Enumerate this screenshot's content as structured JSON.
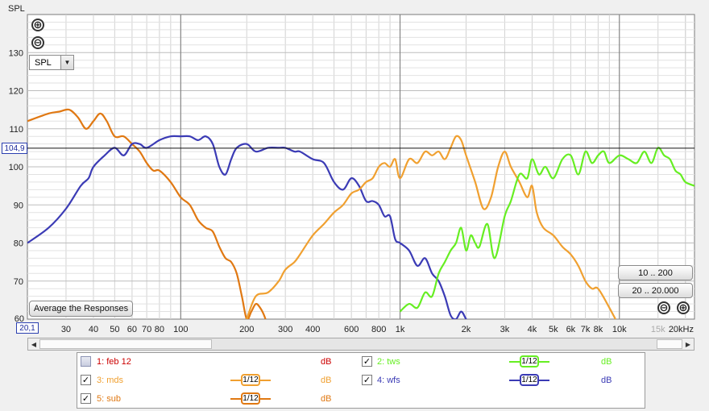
{
  "ylabel": "SPL",
  "cursor": {
    "y_value": "104,9",
    "x_value": "20,1"
  },
  "controls": {
    "zoom_in_v": "⊕",
    "zoom_out_v": "⊖",
    "select_value": "SPL",
    "select_arrow": "▼",
    "range_10_200": "10 .. 200",
    "range_20_20000": "20 .. 20.000",
    "avg_button": "Average the Responses",
    "zoom_out_h": "⊖",
    "zoom_in_h": "⊕",
    "scroll_left": "◀",
    "scroll_right": "▶"
  },
  "legend": {
    "items": [
      {
        "label": "1: feb 12",
        "checked": false,
        "color": "#cc0000",
        "smoothing": "",
        "unit": "dB"
      },
      {
        "label": "2: tws",
        "checked": true,
        "color": "#66ee22",
        "smoothing": "1/12",
        "unit": "dB"
      },
      {
        "label": "3: mds",
        "checked": true,
        "color": "#f0a030",
        "smoothing": "1/12",
        "unit": "dB"
      },
      {
        "label": "4: wfs",
        "checked": true,
        "color": "#3b3bb5",
        "smoothing": "1/12",
        "unit": "dB"
      },
      {
        "label": "5: sub",
        "checked": true,
        "color": "#e07812",
        "smoothing": "1/12",
        "unit": "dB"
      }
    ],
    "check_mark": "✓"
  },
  "chart_data": {
    "type": "line",
    "xscale": "log",
    "xlim": [
      20,
      22000
    ],
    "ylim": [
      60,
      140
    ],
    "ylabel": "SPL",
    "cursor_y": 104.9,
    "yticks": [
      60,
      70,
      80,
      90,
      100,
      110,
      120,
      130
    ],
    "ytick_labels": [
      "60",
      "70",
      "80",
      "90",
      "100",
      "110",
      "120",
      "130"
    ],
    "xticks": [
      30,
      40,
      50,
      60,
      70,
      80,
      100,
      200,
      300,
      400,
      600,
      800,
      1000,
      2000,
      3000,
      4000,
      5000,
      6000,
      7000,
      8000,
      10000,
      15000,
      20000
    ],
    "xtick_labels": [
      "30",
      "40",
      "50",
      "60",
      "70",
      "80",
      "100",
      "200",
      "300",
      "400",
      "600",
      "800",
      "1k",
      "2k",
      "3k",
      "4k",
      "5k",
      "6k",
      "7k",
      "8k",
      "10k",
      "15k",
      "20kHz"
    ],
    "grid": true,
    "series": [
      {
        "name": "5: sub",
        "color": "#e07812",
        "x": [
          20,
          25,
          28,
          31,
          34,
          37,
          40,
          43,
          46,
          50,
          55,
          60,
          65,
          70,
          75,
          80,
          90,
          100,
          110,
          120,
          130,
          140,
          150,
          160,
          170,
          180,
          190,
          200,
          210,
          220,
          230,
          240,
          250
        ],
        "y": [
          112,
          114,
          114.5,
          115,
          113,
          110,
          112,
          114,
          112,
          108,
          108,
          106,
          104,
          101,
          99,
          99,
          96,
          92,
          90,
          86,
          84,
          83,
          79,
          76,
          75,
          72,
          66,
          60,
          62,
          64,
          63,
          61,
          58
        ]
      },
      {
        "name": "4: wfs",
        "color": "#3b3bb5",
        "x": [
          20,
          25,
          30,
          35,
          38,
          40,
          45,
          50,
          55,
          60,
          65,
          70,
          80,
          90,
          100,
          110,
          120,
          130,
          140,
          150,
          160,
          170,
          180,
          200,
          220,
          250,
          280,
          300,
          330,
          350,
          400,
          450,
          500,
          550,
          600,
          650,
          700,
          750,
          800,
          850,
          900,
          950,
          1000,
          1100,
          1200,
          1300,
          1400,
          1500,
          1600,
          1700,
          1800,
          1900,
          2000,
          2100
        ],
        "y": [
          80,
          84,
          89,
          95,
          97,
          100,
          103,
          105,
          103,
          106,
          106,
          105,
          107,
          108,
          108,
          108,
          107,
          108,
          106,
          100,
          98,
          102,
          105,
          106,
          104,
          105,
          105,
          105,
          104,
          104,
          102,
          101,
          96,
          94,
          97,
          95,
          91,
          91,
          90,
          87,
          87,
          81,
          80,
          78,
          74,
          76,
          72,
          70,
          66,
          61,
          60,
          62,
          60,
          58
        ]
      },
      {
        "name": "3: mds",
        "color": "#f0a030",
        "x": [
          200,
          220,
          250,
          280,
          300,
          330,
          350,
          400,
          450,
          500,
          550,
          600,
          650,
          700,
          750,
          800,
          850,
          900,
          950,
          1000,
          1100,
          1200,
          1300,
          1400,
          1500,
          1600,
          1700,
          1800,
          1900,
          2000,
          2200,
          2400,
          2600,
          2800,
          3000,
          3200,
          3500,
          3800,
          4000,
          4200,
          4500,
          5000,
          5500,
          6000,
          6500,
          7000,
          7500,
          8000,
          9000,
          10000
        ],
        "y": [
          60,
          66,
          67,
          70,
          73,
          75,
          77,
          82,
          85,
          88,
          90,
          93,
          94,
          96,
          97,
          100,
          101,
          100,
          102,
          97,
          102,
          101,
          104,
          103,
          104,
          102,
          105,
          108,
          107,
          103,
          96,
          89,
          92,
          100,
          104,
          100,
          96,
          92,
          95,
          88,
          84,
          82,
          79,
          77,
          74,
          70,
          68,
          68,
          63,
          58
        ]
      },
      {
        "name": "2: tws",
        "color": "#66ee22",
        "x": [
          1000,
          1100,
          1200,
          1300,
          1400,
          1500,
          1600,
          1700,
          1800,
          1900,
          2000,
          2100,
          2200,
          2300,
          2500,
          2700,
          3000,
          3200,
          3500,
          3800,
          4000,
          4300,
          4600,
          5000,
          5500,
          6000,
          6500,
          7000,
          7500,
          8000,
          8500,
          9000,
          10000,
          11000,
          12000,
          13000,
          14000,
          15000,
          16000,
          17000,
          18000,
          19000,
          20000,
          22000
        ],
        "y": [
          62,
          64,
          63,
          67,
          66,
          72,
          75,
          78,
          80,
          84,
          78,
          82,
          80,
          79,
          85,
          76,
          87,
          91,
          98,
          97,
          102,
          98,
          100,
          97,
          102,
          103,
          98,
          104,
          101,
          103,
          104,
          101,
          103,
          102,
          101,
          104,
          101,
          105,
          103,
          102,
          99,
          98,
          96,
          95
        ]
      }
    ]
  }
}
